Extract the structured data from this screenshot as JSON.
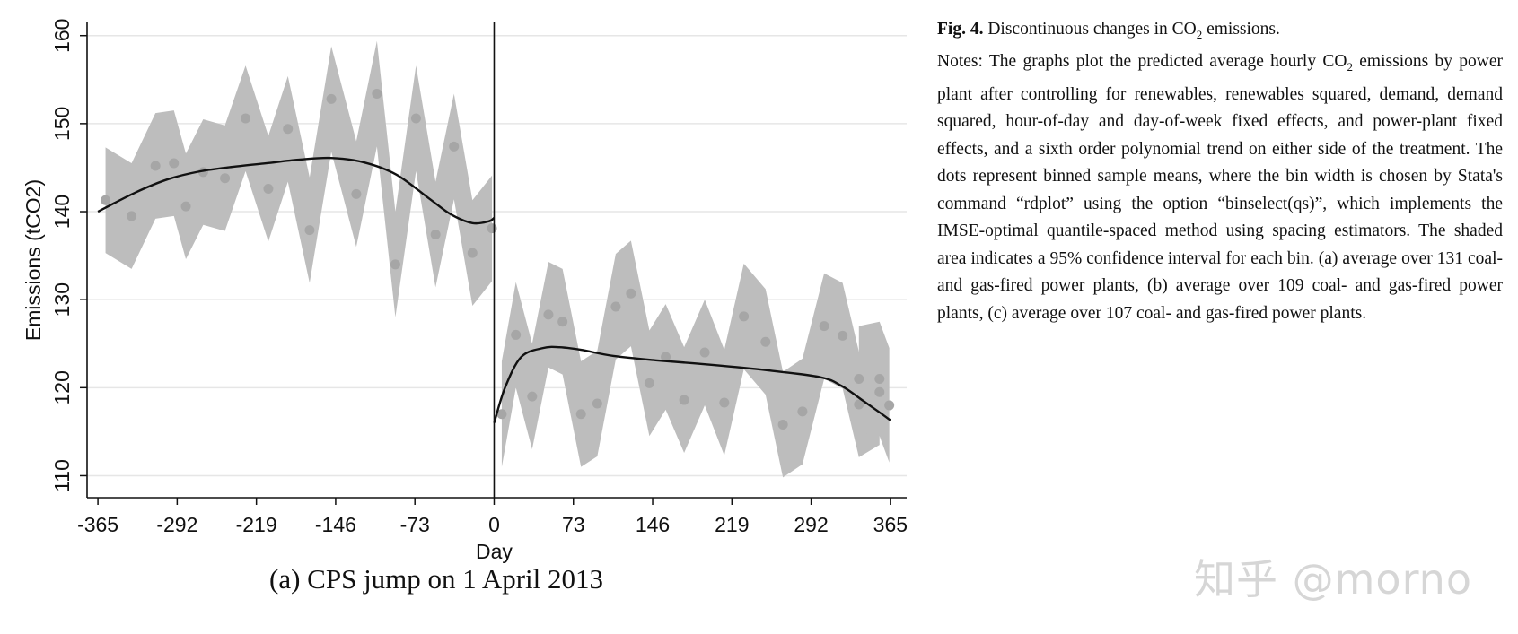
{
  "chart_data": {
    "type": "scatter",
    "title": "",
    "xlabel": "Day",
    "ylabel": "Emissions (tCO2)",
    "xlim": [
      -375,
      380
    ],
    "ylim": [
      107.5,
      161.5
    ],
    "x_ticks": [
      -365,
      -292,
      -219,
      -146,
      -73,
      0,
      73,
      146,
      219,
      292,
      365
    ],
    "y_ticks": [
      110,
      120,
      130,
      140,
      150,
      160
    ],
    "cutoff_day": 0,
    "bins_left": {
      "x": [
        -358,
        -334,
        -312,
        -295,
        -284,
        -268,
        -248,
        -229,
        -208,
        -190,
        -170,
        -150,
        -127,
        -108,
        -91,
        -72,
        -54,
        -37,
        -20
      ],
      "mean": [
        141.3,
        139.5,
        145.2,
        145.5,
        140.6,
        144.5,
        143.8,
        150.6,
        142.6,
        149.4,
        137.9,
        152.8,
        142.0,
        153.4,
        134.0,
        150.6,
        137.4,
        147.4,
        135.3
      ],
      "ci_low": [
        135.3,
        133.5,
        139.2,
        139.5,
        134.6,
        138.5,
        137.8,
        144.6,
        136.6,
        143.4,
        131.9,
        146.8,
        136.0,
        147.4,
        128.0,
        144.6,
        131.4,
        141.4,
        129.3
      ],
      "ci_high": [
        147.3,
        145.5,
        151.2,
        151.5,
        146.6,
        150.5,
        149.8,
        156.6,
        148.6,
        155.4,
        143.9,
        158.8,
        148.0,
        159.4,
        140.0,
        156.6,
        143.4,
        153.4,
        141.3
      ]
    },
    "bin_cutoff_left": {
      "x": -2,
      "mean": 138.1,
      "ci_low": 132.1,
      "ci_high": 144.1
    },
    "bins_right": {
      "x": [
        7,
        20,
        35,
        50,
        63,
        80,
        95,
        112,
        126,
        143,
        158,
        175,
        194,
        212,
        230,
        250,
        266,
        284,
        304,
        321,
        336,
        355
      ],
      "mean": [
        117.0,
        126.0,
        119.0,
        128.3,
        127.5,
        117.0,
        118.2,
        129.2,
        130.7,
        120.5,
        123.5,
        118.6,
        124.0,
        118.3,
        128.1,
        125.2,
        115.8,
        117.3,
        127.0,
        125.9,
        118.1,
        119.5
      ],
      "ci_low": [
        111.0,
        120.0,
        113.0,
        122.3,
        121.5,
        111.0,
        112.2,
        123.2,
        124.7,
        114.5,
        117.5,
        112.6,
        118.0,
        112.3,
        122.1,
        119.2,
        109.8,
        111.3,
        121.0,
        119.9,
        112.1,
        113.5
      ],
      "ci_high": [
        123.0,
        132.0,
        125.0,
        134.3,
        133.5,
        123.0,
        124.2,
        135.2,
        136.7,
        126.5,
        129.5,
        124.6,
        130.0,
        124.3,
        134.1,
        131.2,
        121.8,
        123.3,
        133.0,
        131.9,
        124.1,
        125.5
      ]
    },
    "bins_right_extra": {
      "x": [
        336,
        355,
        364
      ],
      "mean": [
        121.0,
        121.0,
        118.0
      ],
      "ci_low": [
        115.0,
        114.5,
        111.5
      ],
      "ci_high": [
        127.0,
        127.5,
        124.5
      ]
    },
    "fit_left": {
      "x": [
        -365,
        -330,
        -300,
        -270,
        -240,
        -210,
        -180,
        -150,
        -120,
        -90,
        -60,
        -40,
        -20,
        -5,
        0
      ],
      "y": [
        140.0,
        142.2,
        143.7,
        144.6,
        145.1,
        145.5,
        145.9,
        146.1,
        145.6,
        144.2,
        141.5,
        139.7,
        138.7,
        138.9,
        139.3
      ]
    },
    "fit_right": {
      "x": [
        0,
        10,
        25,
        45,
        60,
        80,
        110,
        150,
        200,
        250,
        300,
        320,
        340,
        355,
        365
      ],
      "y": [
        116.0,
        120.0,
        123.5,
        124.5,
        124.6,
        124.3,
        123.6,
        123.1,
        122.6,
        122.0,
        121.2,
        120.2,
        118.5,
        117.2,
        116.3
      ]
    }
  },
  "caption": "(a) CPS jump on 1 April 2013",
  "notes": {
    "fig_label": "Fig. 4.",
    "fig_title_before": "Discontinuous changes in CO",
    "fig_title_sub": "2",
    "fig_title_after": "emissions.",
    "text_before": "Notes: The graphs plot the predicted average hourly CO",
    "text_sub": "2",
    "text_after": "emissions by power plant after controlling for renewables, renewables squared, demand, demand squared, hour-of-day and day-of-week fixed effects, and power-plant fixed effects, and a sixth order polynomial trend on either side of the treatment. The dots represent binned sample means, where the bin width is chosen by Stata's command “rdplot” using the option “binselect(qs)”, which implements the IMSE-optimal quantile-spaced method using spacing estimators. The shaded area indicates a 95% confidence interval for each bin. (a) average over 131 coal- and gas-fired power plants, (b) average over 109 coal- and gas-fired power plants, (c) average over 107 coal- and gas-fired power plants."
  },
  "watermark": "知乎 @morno",
  "colors": {
    "band": "#bdbdbd",
    "dot": "#a6a6a6",
    "fit": "#111111",
    "grid": "#e6e6e6"
  }
}
